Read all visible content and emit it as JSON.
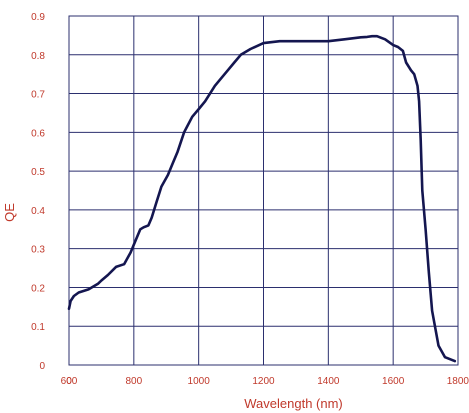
{
  "chart_data": {
    "type": "line",
    "xlabel": "Wavelength (nm)",
    "ylabel": "QE",
    "xlim": [
      600,
      1800
    ],
    "ylim": [
      0,
      0.9
    ],
    "x_ticks": [
      600,
      800,
      1000,
      1200,
      1400,
      1600,
      1800
    ],
    "x_tick_labels": [
      "600",
      "800",
      "1000",
      "1200",
      "1400",
      "1600",
      "1800"
    ],
    "y_ticks": [
      0,
      0.1,
      0.2,
      0.3,
      0.4,
      0.5,
      0.6,
      0.7,
      0.8,
      0.9
    ],
    "y_tick_labels": [
      "0",
      "0.1",
      "0.2",
      "0.3",
      "0.4",
      "0.5",
      "0.6",
      "0.7",
      "0.8",
      "0.9"
    ],
    "origin_x_label": "0",
    "grid": true,
    "colors": {
      "line": "#141650",
      "grid": "#2b2f6e",
      "label": "#c0392b",
      "axis_title": "#c0392b"
    },
    "series": [
      {
        "x": [
          600,
          605,
          615,
          630,
          660,
          690,
          700,
          720,
          745,
          770,
          790,
          800,
          820,
          830,
          845,
          855,
          870,
          885,
          905,
          920,
          935,
          955,
          980,
          1000,
          1020,
          1050,
          1075,
          1090,
          1110,
          1130,
          1160,
          1200,
          1250,
          1300,
          1350,
          1400,
          1450,
          1500,
          1520,
          1535,
          1550,
          1575,
          1600,
          1615,
          1630,
          1640,
          1655,
          1665,
          1675,
          1680,
          1685,
          1690,
          1700,
          1710,
          1720,
          1740,
          1760,
          1790
        ],
        "y": [
          0.145,
          0.165,
          0.178,
          0.187,
          0.195,
          0.21,
          0.218,
          0.232,
          0.253,
          0.26,
          0.29,
          0.31,
          0.35,
          0.355,
          0.36,
          0.38,
          0.42,
          0.46,
          0.49,
          0.52,
          0.55,
          0.6,
          0.64,
          0.66,
          0.68,
          0.72,
          0.745,
          0.76,
          0.78,
          0.8,
          0.815,
          0.83,
          0.835,
          0.835,
          0.835,
          0.835,
          0.84,
          0.845,
          0.846,
          0.848,
          0.848,
          0.84,
          0.825,
          0.82,
          0.81,
          0.78,
          0.76,
          0.75,
          0.72,
          0.68,
          0.58,
          0.45,
          0.35,
          0.24,
          0.14,
          0.05,
          0.02,
          0.01
        ]
      }
    ]
  }
}
